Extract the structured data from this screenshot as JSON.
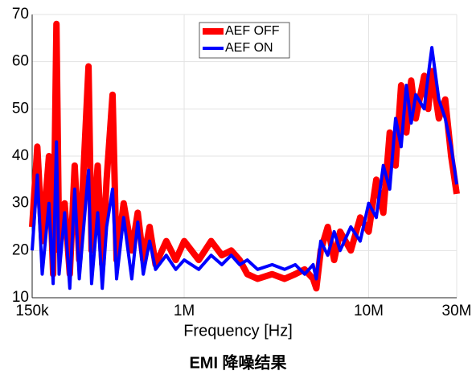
{
  "chart_data": {
    "type": "line",
    "x_label": "Frequency [Hz]",
    "caption": "EMI 降噪结果",
    "xscale": "log",
    "xlim": [
      150000,
      30000000
    ],
    "xticks": [
      {
        "value": 150000,
        "label": "150k"
      },
      {
        "value": 1000000,
        "label": "1M"
      },
      {
        "value": 10000000,
        "label": "10M"
      },
      {
        "value": 30000000,
        "label": "30M"
      }
    ],
    "ylim": [
      10,
      70
    ],
    "yticks": [
      10,
      20,
      30,
      40,
      50,
      60,
      70
    ],
    "grid": true,
    "legend": "top",
    "x": [
      150000,
      160000,
      170000,
      185000,
      195000,
      203000,
      210000,
      225000,
      240000,
      255000,
      270000,
      303000,
      315000,
      340000,
      360000,
      380000,
      409000,
      430000,
      470000,
      520000,
      560000,
      600000,
      650000,
      700000,
      800000,
      900000,
      1000000,
      1200000,
      1400000,
      1600000,
      1800000,
      2000000,
      2200000,
      2500000,
      3000000,
      3500000,
      4000000,
      4500000,
      5000000,
      5200000,
      5500000,
      6000000,
      6500000,
      7000000,
      8000000,
      9000000,
      10000000,
      11000000,
      12000000,
      13000000,
      14000000,
      15000000,
      16000000,
      17000000,
      18000000,
      20000000,
      21000000,
      22000000,
      24000000,
      26000000,
      28000000,
      29000000,
      30000000
    ],
    "series": [
      {
        "name": "AEF OFF",
        "color": "#ff0000",
        "values": [
          25,
          42,
          22,
          40,
          15,
          68,
          20,
          30,
          15,
          38,
          18,
          59,
          20,
          38,
          17,
          35,
          53,
          18,
          30,
          20,
          28,
          18,
          25,
          17,
          22,
          18,
          22,
          18,
          22,
          19,
          20,
          18,
          15,
          14,
          15,
          14,
          15,
          16,
          14,
          12,
          20,
          25,
          18,
          24,
          20,
          27,
          24,
          35,
          28,
          45,
          38,
          55,
          45,
          56,
          48,
          57,
          50,
          58,
          48,
          52,
          40,
          36,
          32
        ]
      },
      {
        "name": "AEF ON",
        "color": "#0000ff",
        "values": [
          20,
          36,
          15,
          30,
          13,
          43,
          15,
          28,
          12,
          33,
          14,
          37,
          13,
          28,
          12,
          25,
          33,
          14,
          27,
          14,
          26,
          15,
          22,
          16,
          19,
          16,
          18,
          16,
          19,
          17,
          19,
          17,
          18,
          16,
          17,
          16,
          17,
          15,
          17,
          14,
          22,
          19,
          24,
          20,
          25,
          22,
          30,
          27,
          38,
          33,
          48,
          42,
          55,
          47,
          53,
          50,
          57,
          63,
          52,
          48,
          42,
          38,
          34
        ]
      }
    ]
  }
}
